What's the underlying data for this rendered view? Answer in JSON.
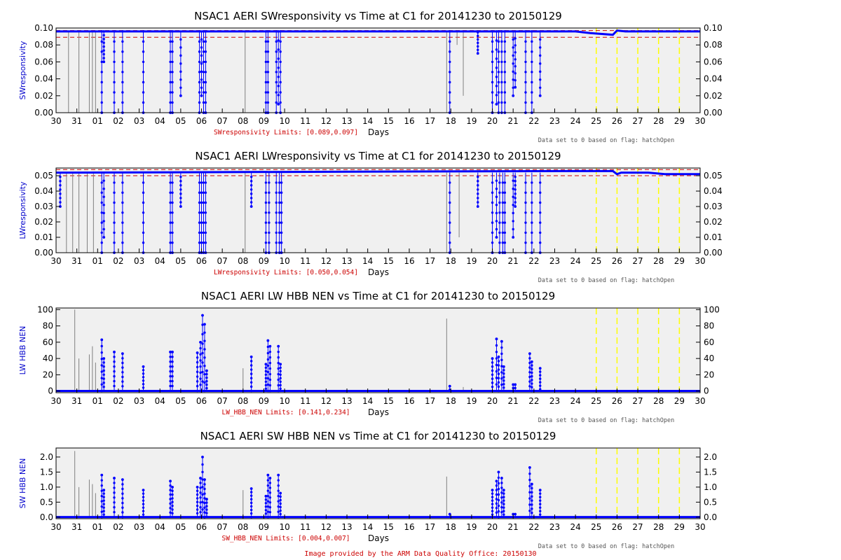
{
  "x_axis": {
    "label": "Days",
    "ticks": [
      "30",
      "31",
      "01",
      "02",
      "03",
      "04",
      "05",
      "06",
      "07",
      "08",
      "09",
      "10",
      "11",
      "12",
      "13",
      "14",
      "15",
      "16",
      "17",
      "18",
      "19",
      "20",
      "21",
      "22",
      "23",
      "24",
      "25",
      "26",
      "27",
      "28",
      "29",
      "30"
    ]
  },
  "missing_day_markers": [
    "25",
    "26",
    "27",
    "28",
    "29"
  ],
  "flag_note": "Data set to 0 based on flag: hatchOpen",
  "footer": "Image provided by the ARM Data Quality Office: 20150130",
  "colors": {
    "plot_bg": "#f0f0f0",
    "data": "#0000ff",
    "raw": "#808080",
    "limit": "#cc0000",
    "missing": "#ffff00",
    "text": "#000000",
    "ylabel": "#0000cc",
    "limits_text": "#cc0000",
    "note_text": "#555555"
  },
  "chart_data": [
    {
      "type": "scatter",
      "title": "NSAC1 AERI SWresponsivity vs Time at C1 for 20141230 to 20150129",
      "ylabel": "SWresponsivity",
      "xlabel": "Days",
      "limits_text": "SWresponsivity Limits: [0.089,0.097]",
      "ylim": [
        0,
        0.1
      ],
      "yticks": [
        0.0,
        0.02,
        0.04,
        0.06,
        0.08,
        0.1
      ],
      "ytick_labels": [
        "0.00",
        "0.02",
        "0.04",
        "0.06",
        "0.08",
        "0.10"
      ],
      "limits": [
        0.089,
        0.097
      ],
      "baseline": 0.096,
      "baseline_shape": [
        [
          25.0,
          0.096
        ],
        [
          25.7,
          0.094
        ],
        [
          26.8,
          0.092
        ],
        [
          27.0,
          0.097
        ],
        [
          27.4,
          0.096
        ]
      ],
      "spikes": [
        {
          "x": 0.6,
          "lo": 0.0,
          "raw": true
        },
        {
          "x": 1.1,
          "lo": 0.0,
          "raw": true
        },
        {
          "x": 1.6,
          "lo": 0.0,
          "raw": true
        },
        {
          "x": 1.75,
          "lo": 0.0,
          "raw": true
        },
        {
          "x": 1.9,
          "lo": 0.0,
          "raw": true
        },
        {
          "x": 2.2,
          "lo": 0.0
        },
        {
          "x": 2.3,
          "lo": 0.06
        },
        {
          "x": 2.8,
          "lo": 0.0
        },
        {
          "x": 3.2,
          "lo": 0.0
        },
        {
          "x": 4.2,
          "lo": 0.0
        },
        {
          "x": 5.5,
          "lo": 0.0
        },
        {
          "x": 5.6,
          "lo": 0.0
        },
        {
          "x": 6.0,
          "lo": 0.02
        },
        {
          "x": 6.9,
          "lo": 0.0
        },
        {
          "x": 7.0,
          "lo": 0.02
        },
        {
          "x": 7.1,
          "lo": 0.0
        },
        {
          "x": 7.2,
          "lo": 0.0
        },
        {
          "x": 9.1,
          "lo": 0.0,
          "raw": true
        },
        {
          "x": 10.1,
          "lo": 0.0
        },
        {
          "x": 10.2,
          "lo": 0.0
        },
        {
          "x": 10.6,
          "lo": 0.0
        },
        {
          "x": 10.7,
          "lo": 0.01
        },
        {
          "x": 10.8,
          "lo": 0.0
        },
        {
          "x": 18.8,
          "lo": 0.0,
          "raw": true
        },
        {
          "x": 18.95,
          "lo": 0.0
        },
        {
          "x": 19.3,
          "lo": 0.08,
          "raw": true
        },
        {
          "x": 19.6,
          "lo": 0.02,
          "raw": true
        },
        {
          "x": 20.3,
          "lo": 0.07
        },
        {
          "x": 21.0,
          "lo": 0.0
        },
        {
          "x": 21.2,
          "lo": 0.01
        },
        {
          "x": 21.3,
          "lo": 0.0
        },
        {
          "x": 21.45,
          "lo": 0.0
        },
        {
          "x": 21.6,
          "lo": 0.0
        },
        {
          "x": 22.0,
          "lo": 0.02
        },
        {
          "x": 22.1,
          "lo": 0.03
        },
        {
          "x": 22.6,
          "lo": 0.0
        },
        {
          "x": 22.9,
          "lo": 0.0
        },
        {
          "x": 23.3,
          "lo": 0.02
        }
      ]
    },
    {
      "type": "scatter",
      "title": "NSAC1 AERI LWresponsivity vs Time at C1 for 20141230 to 20150129",
      "ylabel": "LWresponsivity",
      "xlabel": "Days",
      "limits_text": "LWresponsivity Limits: [0.050,0.054]",
      "ylim": [
        0,
        0.055
      ],
      "yticks": [
        0.0,
        0.01,
        0.02,
        0.03,
        0.04,
        0.05
      ],
      "ytick_labels": [
        "0.00",
        "0.01",
        "0.02",
        "0.03",
        "0.04",
        "0.05"
      ],
      "limits": [
        0.05,
        0.054
      ],
      "baseline": 0.052,
      "baseline_shape": [
        [
          24.5,
          0.053
        ],
        [
          26.8,
          0.053
        ],
        [
          27.0,
          0.051
        ],
        [
          27.2,
          0.052
        ],
        [
          28.5,
          0.052
        ],
        [
          29.3,
          0.051
        ]
      ],
      "spikes": [
        {
          "x": 0.2,
          "lo": 0.03
        },
        {
          "x": 0.5,
          "lo": 0.0,
          "raw": true
        },
        {
          "x": 0.8,
          "lo": 0.0,
          "raw": true
        },
        {
          "x": 1.1,
          "lo": 0.0,
          "raw": true
        },
        {
          "x": 1.5,
          "lo": 0.0,
          "raw": true
        },
        {
          "x": 1.8,
          "lo": 0.0,
          "raw": true
        },
        {
          "x": 2.2,
          "lo": 0.0
        },
        {
          "x": 2.3,
          "lo": 0.01
        },
        {
          "x": 2.8,
          "lo": 0.0
        },
        {
          "x": 3.2,
          "lo": 0.0
        },
        {
          "x": 4.2,
          "lo": 0.0
        },
        {
          "x": 5.5,
          "lo": 0.0
        },
        {
          "x": 5.6,
          "lo": 0.0
        },
        {
          "x": 6.0,
          "lo": 0.03
        },
        {
          "x": 6.9,
          "lo": 0.0
        },
        {
          "x": 7.0,
          "lo": 0.0
        },
        {
          "x": 7.1,
          "lo": 0.0
        },
        {
          "x": 7.2,
          "lo": 0.0
        },
        {
          "x": 9.1,
          "lo": 0.0,
          "raw": true
        },
        {
          "x": 9.4,
          "lo": 0.03
        },
        {
          "x": 10.1,
          "lo": 0.0
        },
        {
          "x": 10.25,
          "lo": 0.0
        },
        {
          "x": 10.6,
          "lo": 0.0
        },
        {
          "x": 10.75,
          "lo": 0.0
        },
        {
          "x": 10.85,
          "lo": 0.0
        },
        {
          "x": 18.8,
          "lo": 0.0,
          "raw": true
        },
        {
          "x": 18.95,
          "lo": 0.0
        },
        {
          "x": 19.4,
          "lo": 0.01,
          "raw": true
        },
        {
          "x": 20.3,
          "lo": 0.03
        },
        {
          "x": 21.0,
          "lo": 0.0
        },
        {
          "x": 21.2,
          "lo": 0.01
        },
        {
          "x": 21.35,
          "lo": 0.0
        },
        {
          "x": 21.5,
          "lo": 0.0
        },
        {
          "x": 21.6,
          "lo": 0.0
        },
        {
          "x": 22.0,
          "lo": 0.01
        },
        {
          "x": 22.1,
          "lo": 0.03
        },
        {
          "x": 22.6,
          "lo": 0.0
        },
        {
          "x": 22.9,
          "lo": 0.0
        },
        {
          "x": 23.3,
          "lo": 0.0
        }
      ]
    },
    {
      "type": "scatter",
      "title": "NSAC1 AERI LW HBB NEN vs Time at C1 for 20141230 to 20150129",
      "ylabel": "LW HBB NEN",
      "xlabel": "Days",
      "limits_text": "LW_HBB_NEN Limits: [0.141,0.234]",
      "ylim": [
        -2,
        102
      ],
      "yticks": [
        0,
        20,
        40,
        60,
        80,
        100
      ],
      "ytick_labels": [
        "0",
        "20",
        "40",
        "60",
        "80",
        "100"
      ],
      "limits": [
        0.141,
        0.234
      ],
      "baseline": 0.2,
      "spikes": [
        {
          "x": 0.9,
          "hi": 100,
          "raw": true
        },
        {
          "x": 1.1,
          "hi": 40,
          "raw": true
        },
        {
          "x": 1.6,
          "hi": 45,
          "raw": true
        },
        {
          "x": 1.75,
          "hi": 55,
          "raw": true
        },
        {
          "x": 1.9,
          "hi": 35,
          "raw": true
        },
        {
          "x": 2.2,
          "hi": 63
        },
        {
          "x": 2.3,
          "hi": 40
        },
        {
          "x": 2.8,
          "hi": 48
        },
        {
          "x": 3.2,
          "hi": 46
        },
        {
          "x": 4.2,
          "hi": 30
        },
        {
          "x": 5.5,
          "hi": 48
        },
        {
          "x": 5.6,
          "hi": 48
        },
        {
          "x": 6.8,
          "hi": 47
        },
        {
          "x": 6.95,
          "hi": 60
        },
        {
          "x": 7.05,
          "hi": 93
        },
        {
          "x": 7.15,
          "hi": 82
        },
        {
          "x": 7.25,
          "hi": 25
        },
        {
          "x": 9.0,
          "hi": 28,
          "raw": true
        },
        {
          "x": 9.4,
          "hi": 42
        },
        {
          "x": 10.1,
          "hi": 33
        },
        {
          "x": 10.2,
          "hi": 62
        },
        {
          "x": 10.3,
          "hi": 55
        },
        {
          "x": 10.7,
          "hi": 55
        },
        {
          "x": 10.8,
          "hi": 33
        },
        {
          "x": 18.8,
          "hi": 89,
          "raw": true
        },
        {
          "x": 18.95,
          "hi": 6
        },
        {
          "x": 19.6,
          "hi": 5,
          "raw": true
        },
        {
          "x": 21.0,
          "hi": 40
        },
        {
          "x": 21.2,
          "hi": 64
        },
        {
          "x": 21.3,
          "hi": 42
        },
        {
          "x": 21.45,
          "hi": 61
        },
        {
          "x": 21.55,
          "hi": 30
        },
        {
          "x": 22.0,
          "hi": 8
        },
        {
          "x": 22.1,
          "hi": 8
        },
        {
          "x": 22.8,
          "hi": 46
        },
        {
          "x": 22.9,
          "hi": 36
        },
        {
          "x": 23.3,
          "hi": 28
        }
      ]
    },
    {
      "type": "scatter",
      "title": "NSAC1 AERI SW HBB NEN vs Time at C1 for 20141230 to 20150129",
      "ylabel": "SW HBB NEN",
      "xlabel": "Days",
      "limits_text": "SW_HBB_NEN Limits: [0.004,0.007]",
      "ylim": [
        -0.05,
        2.3
      ],
      "yticks": [
        0.0,
        0.5,
        1.0,
        1.5,
        2.0
      ],
      "ytick_labels": [
        "0.0",
        "0.5",
        "1.0",
        "1.5",
        "2.0"
      ],
      "limits": [
        0.004,
        0.007
      ],
      "baseline": 0.005,
      "spikes": [
        {
          "x": 0.9,
          "hi": 2.2,
          "raw": true
        },
        {
          "x": 1.1,
          "hi": 1.0,
          "raw": true
        },
        {
          "x": 1.6,
          "hi": 1.25,
          "raw": true
        },
        {
          "x": 1.75,
          "hi": 1.1,
          "raw": true
        },
        {
          "x": 1.9,
          "hi": 0.8,
          "raw": true
        },
        {
          "x": 2.2,
          "hi": 1.4
        },
        {
          "x": 2.3,
          "hi": 0.9
        },
        {
          "x": 2.8,
          "hi": 1.3
        },
        {
          "x": 3.2,
          "hi": 1.25
        },
        {
          "x": 4.2,
          "hi": 0.9
        },
        {
          "x": 5.5,
          "hi": 1.2
        },
        {
          "x": 5.6,
          "hi": 1.0
        },
        {
          "x": 6.8,
          "hi": 1.0
        },
        {
          "x": 6.95,
          "hi": 1.3
        },
        {
          "x": 7.05,
          "hi": 2.0
        },
        {
          "x": 7.15,
          "hi": 1.25
        },
        {
          "x": 7.25,
          "hi": 0.6
        },
        {
          "x": 9.0,
          "hi": 0.9,
          "raw": true
        },
        {
          "x": 9.4,
          "hi": 0.95
        },
        {
          "x": 10.1,
          "hi": 0.7
        },
        {
          "x": 10.2,
          "hi": 1.4
        },
        {
          "x": 10.3,
          "hi": 1.3
        },
        {
          "x": 10.7,
          "hi": 1.4
        },
        {
          "x": 10.8,
          "hi": 0.8
        },
        {
          "x": 18.8,
          "hi": 1.35,
          "raw": true
        },
        {
          "x": 18.95,
          "hi": 0.1
        },
        {
          "x": 21.0,
          "hi": 0.9
        },
        {
          "x": 21.2,
          "hi": 1.2
        },
        {
          "x": 21.3,
          "hi": 1.5
        },
        {
          "x": 21.45,
          "hi": 1.3
        },
        {
          "x": 21.55,
          "hi": 0.9
        },
        {
          "x": 22.0,
          "hi": 0.1
        },
        {
          "x": 22.1,
          "hi": 0.1
        },
        {
          "x": 22.8,
          "hi": 1.65
        },
        {
          "x": 22.9,
          "hi": 1.1
        },
        {
          "x": 23.3,
          "hi": 0.9
        }
      ]
    }
  ]
}
